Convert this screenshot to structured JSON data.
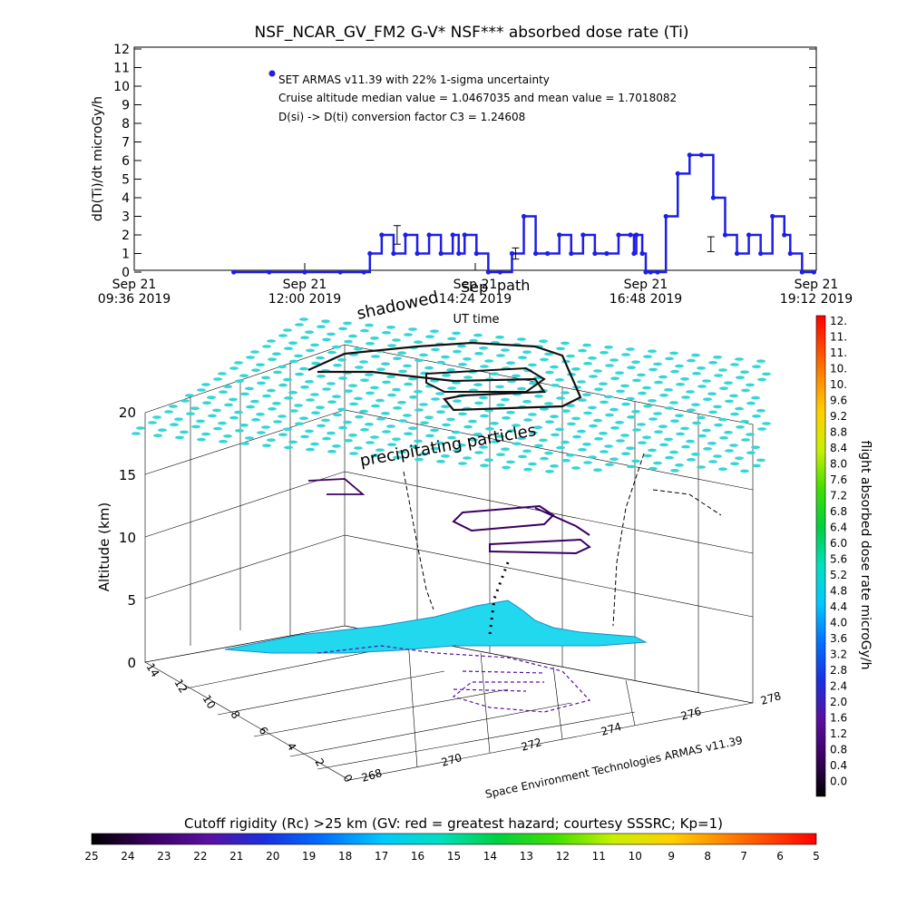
{
  "chart_data": [
    {
      "type": "line",
      "title": "NSF_NCAR_GV_FM2 G-V* NSF*** absorbed dose rate (Ti)",
      "ylabel": "dD(Ti)/dt microGy/h",
      "xlabel": "UT time",
      "ylim": [
        0,
        12
      ],
      "yticks": [
        "0",
        "1",
        "2",
        "3",
        "4",
        "5",
        "6",
        "7",
        "8",
        "9",
        "10",
        "11",
        "12"
      ],
      "xticks": [
        {
          "l1": "Sep 21",
          "l2": "09:36 2019"
        },
        {
          "l1": "Sep 21",
          "l2": "12:00 2019"
        },
        {
          "l1": "Sep 21",
          "l2": "14:24 2019"
        },
        {
          "l1": "Sep 21",
          "l2": "16:48 2019"
        },
        {
          "l1": "Sep 21",
          "l2": "19:12 2019"
        }
      ],
      "legend": [
        "SET ARMAS v11.39 with 22% 1-sigma uncertainty",
        "Cruise altitude median value = 1.0467035 and mean value = 1.7018082",
        "D(si) -> D(ti) conversion factor C3 = 1.24608"
      ],
      "series": [
        {
          "color": "#1e1ee6",
          "x": [
            "2019-09-21T11:00",
            "2019-09-21T11:30",
            "2019-09-21T12:00",
            "2019-09-21T12:30",
            "2019-09-21T12:50",
            "2019-09-21T12:55",
            "2019-09-21T13:05",
            "2019-09-21T13:15",
            "2019-09-21T13:25",
            "2019-09-21T13:35",
            "2019-09-21T13:45",
            "2019-09-21T13:55",
            "2019-09-21T14:05",
            "2019-09-21T14:10",
            "2019-09-21T14:15",
            "2019-09-21T14:25",
            "2019-09-21T14:35",
            "2019-09-21T14:45",
            "2019-09-21T14:55",
            "2019-09-21T15:05",
            "2019-09-21T15:15",
            "2019-09-21T15:25",
            "2019-09-21T15:35",
            "2019-09-21T15:45",
            "2019-09-21T15:55",
            "2019-09-21T16:05",
            "2019-09-21T16:15",
            "2019-09-21T16:25",
            "2019-09-21T16:35",
            "2019-09-21T16:38",
            "2019-09-21T16:40",
            "2019-09-21T16:45",
            "2019-09-21T16:48",
            "2019-09-21T16:52",
            "2019-09-21T16:58",
            "2019-09-21T17:05",
            "2019-09-21T17:15",
            "2019-09-21T17:25",
            "2019-09-21T17:35",
            "2019-09-21T17:45",
            "2019-09-21T17:55",
            "2019-09-21T18:05",
            "2019-09-21T18:15",
            "2019-09-21T18:25",
            "2019-09-21T18:35",
            "2019-09-21T18:45",
            "2019-09-21T18:50",
            "2019-09-21T19:00",
            "2019-09-21T19:10"
          ],
          "y": [
            0,
            0,
            0,
            0,
            0,
            1,
            2,
            1,
            2,
            1,
            2,
            1,
            2,
            1,
            2,
            1,
            0,
            0,
            1,
            3,
            1,
            1,
            2,
            1,
            2,
            1,
            1,
            2,
            2,
            1,
            2,
            1,
            0,
            0,
            0,
            3,
            5.3,
            6.3,
            6.3,
            4,
            2,
            1,
            2,
            1,
            3,
            2,
            1,
            0,
            0
          ]
        }
      ],
      "error_bars": [
        {
          "x": "2019-09-21T13:18",
          "y": 2,
          "err": 0.5
        },
        {
          "x": "2019-09-21T14:58",
          "y": 1,
          "err": 0.3
        },
        {
          "x": "2019-09-21T17:43",
          "y": 1.5,
          "err": 0.4
        }
      ]
    },
    {
      "type": "scatter",
      "subtype": "3d-trajectory",
      "zlabel": "Altitude (km)",
      "zticks": [
        "0",
        "5",
        "10",
        "15",
        "20"
      ],
      "xticks": [
        "268",
        "270",
        "272",
        "274",
        "276",
        "278"
      ],
      "yticks": [
        "0",
        "2",
        "4",
        "6",
        "8",
        "10",
        "12",
        "14"
      ],
      "labels": {
        "shadowed": "shadowed",
        "sep": "Sep",
        "path": "path",
        "precipitating": "precipitating particles",
        "credit": "Space Environment Technologies ARMAS v11.39"
      },
      "colorbar": {
        "label": "flight absorbed dose rate microGy/h",
        "ticks": [
          "12.",
          "11.",
          "11.",
          "10.",
          "10.",
          "9.6",
          "9.2",
          "8.8",
          "8.4",
          "8.0",
          "7.6",
          "7.2",
          "6.8",
          "6.4",
          "6.0",
          "5.6",
          "5.2",
          "4.8",
          "4.4",
          "4.0",
          "3.6",
          "3.2",
          "2.8",
          "2.4",
          "2.0",
          "1.6",
          "1.2",
          "0.8",
          "0.4",
          "0.0"
        ]
      }
    },
    {
      "type": "heatmap",
      "subtype": "colorbar",
      "title": "Cutoff rigidity (Rc) >25 km (GV: red = greatest hazard; courtesy SSSRC; Kp=1)",
      "ticks": [
        "25",
        "24",
        "23",
        "22",
        "21",
        "20",
        "19",
        "18",
        "17",
        "16",
        "15",
        "14",
        "13",
        "12",
        "11",
        "10",
        "9",
        "8",
        "7",
        "6",
        "5"
      ]
    }
  ]
}
